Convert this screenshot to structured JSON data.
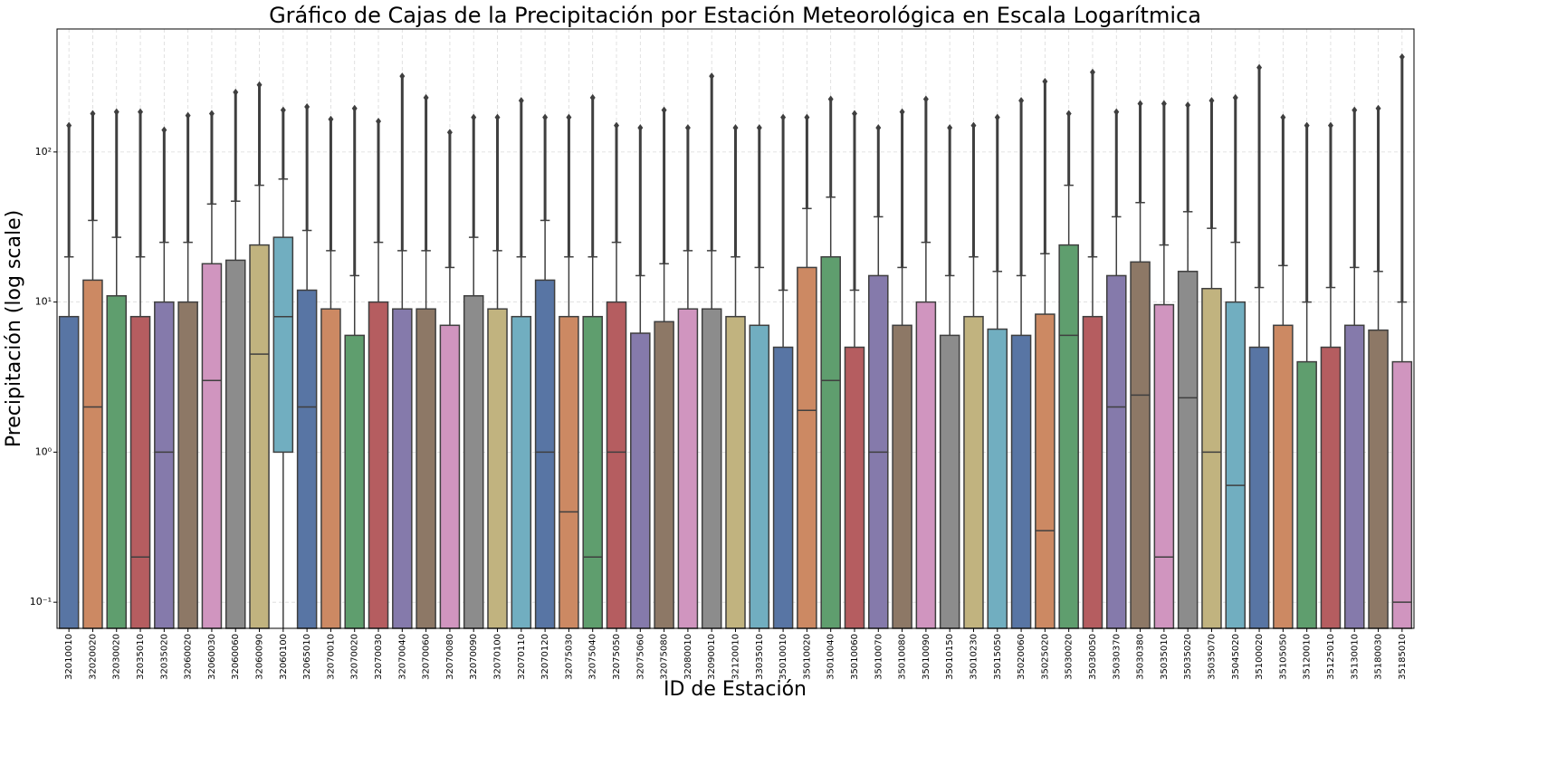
{
  "chart_data": {
    "type": "box",
    "title": "Gráfico de Cajas de la Precipitación por Estación Meteorológica en Escala Logarítmica",
    "xlabel": "ID de Estación",
    "ylabel": "Precipitación (log scale)",
    "categories": [
      "32010010",
      "32020020",
      "32030020",
      "32035010",
      "32035020",
      "32060020",
      "32060030",
      "32060060",
      "32060090",
      "32060100",
      "32065010",
      "32070010",
      "32070020",
      "32070030",
      "32070040",
      "32070060",
      "32070080",
      "32070090",
      "32070100",
      "32070110",
      "32070120",
      "32075030",
      "32075040",
      "32075050",
      "32075060",
      "32075080",
      "32080010",
      "32090010",
      "32120010",
      "33035010",
      "35010010",
      "35010020",
      "35010040",
      "35010060",
      "35010070",
      "35010080",
      "35010090",
      "35010150",
      "35010230",
      "35015050",
      "35020060",
      "35025020",
      "35030020",
      "35030050",
      "35030370",
      "35030380",
      "35035010",
      "35035020",
      "35035070",
      "35045020",
      "35100020",
      "35105050",
      "35120010",
      "35125010",
      "35130010",
      "35180030",
      "35185010"
    ],
    "whisker_low": [
      0,
      0,
      0,
      0,
      0,
      0,
      0,
      0,
      0,
      0,
      0,
      0,
      0,
      0,
      0,
      0,
      0,
      0,
      0,
      0,
      0,
      0,
      0,
      0,
      0,
      0,
      0,
      0,
      0,
      0,
      0,
      0,
      0,
      0,
      0,
      0,
      0,
      0,
      0,
      0,
      0,
      0,
      0,
      0,
      0,
      0,
      0,
      0,
      0,
      0,
      0,
      0,
      0,
      0,
      0,
      0,
      0
    ],
    "q1": [
      0,
      0,
      0,
      0,
      0,
      0,
      0,
      0,
      0,
      1,
      0,
      0,
      0,
      0,
      0,
      0,
      0,
      0,
      0,
      0,
      0,
      0,
      0,
      0,
      0,
      0,
      0,
      0,
      0,
      0,
      0,
      0,
      0,
      0,
      0,
      0,
      0,
      0,
      0,
      0,
      0,
      0,
      0,
      0,
      0,
      0,
      0,
      0,
      0,
      0,
      0,
      0,
      0,
      0,
      0,
      0,
      0
    ],
    "median": [
      0,
      2,
      0,
      0.2,
      1,
      0,
      3,
      0,
      4.5,
      8,
      2,
      0,
      0,
      0,
      0,
      0,
      0,
      0,
      0,
      0,
      1,
      0.4,
      0.2,
      1,
      0,
      0,
      0,
      0,
      0,
      0,
      0,
      1.9,
      3,
      0,
      1,
      0,
      0,
      0,
      0,
      0,
      0,
      0.3,
      6,
      0,
      2,
      2.4,
      0.2,
      2.3,
      1,
      0.6,
      0,
      0,
      0,
      0,
      0,
      0,
      0.1
    ],
    "q3": [
      8,
      14,
      11,
      8,
      10,
      10,
      18,
      19,
      24,
      27,
      12,
      9,
      6,
      10,
      9,
      9,
      7,
      11,
      9,
      8,
      14,
      8,
      8,
      10,
      6.2,
      7.4,
      9,
      9,
      8,
      7,
      5,
      17,
      20,
      5,
      15,
      7,
      10,
      6,
      8,
      6.6,
      6,
      8.3,
      24,
      8,
      15,
      18.5,
      9.6,
      16,
      12.3,
      10,
      5,
      7,
      4,
      5,
      7,
      6.5,
      4
    ],
    "whisker_high": [
      20,
      35,
      27,
      20,
      25,
      25,
      45,
      47,
      60,
      66,
      30,
      22,
      15,
      25,
      22,
      22,
      17,
      27,
      22,
      20,
      35,
      20,
      20,
      25,
      15,
      18,
      22,
      22,
      20,
      17,
      12,
      42,
      50,
      12,
      37,
      17,
      25,
      15,
      20,
      16,
      15,
      21,
      60,
      20,
      37,
      46,
      24,
      40,
      31,
      25,
      12.5,
      17.5,
      10,
      12.5,
      17,
      16,
      10
    ],
    "max": [
      150,
      180,
      185,
      185,
      140,
      175,
      180,
      250,
      280,
      190,
      200,
      165,
      195,
      160,
      320,
      230,
      135,
      170,
      170,
      220,
      170,
      170,
      230,
      150,
      145,
      190,
      145,
      320,
      145,
      145,
      170,
      170,
      225,
      180,
      145,
      185,
      225,
      145,
      150,
      170,
      220,
      295,
      180,
      340,
      185,
      210,
      210,
      205,
      220,
      230,
      365,
      170,
      150,
      150,
      190,
      195,
      430
    ],
    "palette": [
      "#5875a4",
      "#cc8963",
      "#5f9e6e",
      "#b55d60",
      "#857aab",
      "#8d7866",
      "#d095bf",
      "#8c8c8c",
      "#c1b37f",
      "#71aec0"
    ],
    "ylim": [
      0.067,
      660
    ],
    "yticks": [
      {
        "value": 0.1,
        "label": "10⁻¹"
      },
      {
        "value": 1,
        "label": "10⁰"
      },
      {
        "value": 10,
        "label": "10¹"
      },
      {
        "value": 100,
        "label": "10²"
      }
    ],
    "log_y": true,
    "grid": true
  }
}
